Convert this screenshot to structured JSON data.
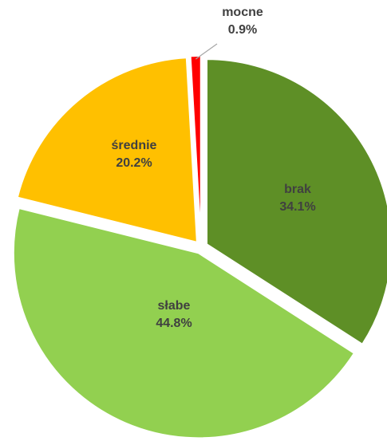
{
  "chart_data": {
    "type": "pie",
    "slices": [
      {
        "label": "brak",
        "value": 34.1,
        "display": "34.1%",
        "color": "#5e8f26"
      },
      {
        "label": "słabe",
        "value": 44.8,
        "display": "44.8%",
        "color": "#92d050"
      },
      {
        "label": "średnie",
        "value": 20.2,
        "display": "20.2%",
        "color": "#ffc000"
      },
      {
        "label": "mocne",
        "value": 0.9,
        "display": "0.9%",
        "color": "#ff0000"
      }
    ],
    "leader_line_color": "#a6a6a6"
  }
}
